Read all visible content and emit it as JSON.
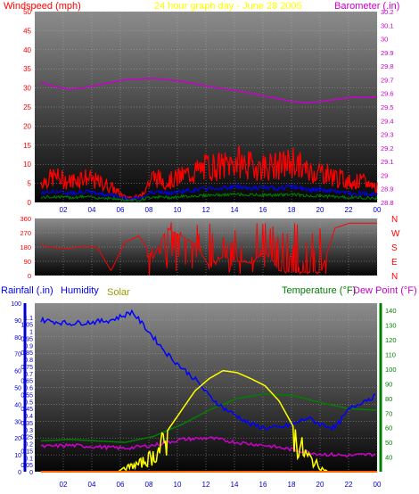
{
  "page": {
    "title": "24 hour graph day - June 28 2005",
    "windspeed_label": "Windspeed (mph)",
    "barometer_label": "Barometer (.in)",
    "rainfall_label": "Rainfall (.in)",
    "humidity_label": "Humidity",
    "solar_label": "Solar",
    "temperature_label": "Temperature (°F)",
    "dewpoint_label": "Dew Point (°F)"
  },
  "colors": {
    "wind": "#ff0000",
    "wind_avg": "#0000ff",
    "wind_low": "#008000",
    "barometer": "#cc00cc",
    "direction": "#ff0000",
    "humidity": "#0000ff",
    "solar": "#ffff00",
    "temperature": "#008000",
    "dewpoint": "#cc00cc",
    "rainfall": "#ff6600",
    "title": "#ffff00"
  },
  "chart_data": [
    {
      "type": "line",
      "name": "wind-barometer",
      "title": "24 hour graph day - June 28 2005",
      "x_ticks": [
        "02",
        "04",
        "06",
        "08",
        "10",
        "12",
        "14",
        "16",
        "18",
        "20",
        "22",
        "00"
      ],
      "y_left": {
        "label": "Windspeed (mph)",
        "range": [
          0,
          50
        ],
        "ticks": [
          "0",
          "5",
          "10",
          "15",
          "20",
          "25",
          "30",
          "35",
          "40",
          "45",
          "50"
        ]
      },
      "y_right": {
        "label": "Barometer (.in)",
        "range": [
          28.8,
          30.2
        ],
        "ticks": [
          "28.8",
          "28.9",
          "29",
          "29.1",
          "29.2",
          "29.3",
          "29.4",
          "29.5",
          "29.6",
          "29.7",
          "29.8",
          "29.9",
          "30",
          "30.1",
          "30.2"
        ]
      },
      "series": [
        {
          "name": "Barometer (.in)",
          "x": [
            0,
            1,
            2,
            3,
            4,
            6,
            8,
            10,
            12,
            14,
            16,
            18,
            19,
            20,
            22,
            24
          ],
          "y": [
            29.68,
            29.65,
            29.63,
            29.64,
            29.66,
            29.7,
            29.71,
            29.69,
            29.65,
            29.62,
            29.58,
            29.54,
            29.53,
            29.54,
            29.57,
            29.57
          ]
        },
        {
          "name": "Windspeed (mph)",
          "x": [
            0,
            1,
            2,
            3,
            4,
            5,
            6,
            7,
            8,
            9,
            10,
            11,
            12,
            13,
            14,
            15,
            16,
            17,
            18,
            19,
            20,
            21,
            22,
            23,
            24
          ],
          "y": [
            4,
            5,
            4,
            5,
            4,
            3,
            1,
            1,
            5,
            4,
            5,
            6,
            7,
            7,
            8,
            7,
            7,
            7,
            8,
            6,
            6,
            5,
            4,
            4,
            3
          ]
        }
      ]
    },
    {
      "type": "line",
      "name": "wind-direction",
      "x_ticks": [
        "02",
        "04",
        "06",
        "08",
        "10",
        "12",
        "14",
        "16",
        "18",
        "20",
        "22",
        "00"
      ],
      "y_left": {
        "range": [
          0,
          360
        ],
        "ticks": [
          "0",
          "90",
          "180",
          "270",
          "360"
        ]
      },
      "y_right_ticks": [
        "N",
        "E",
        "S",
        "W",
        "N"
      ],
      "series": [
        {
          "name": "Wind direction",
          "x": [
            0,
            1,
            2,
            3,
            4,
            5,
            6,
            7,
            8,
            9,
            10,
            11,
            12,
            13,
            14,
            15,
            16,
            17,
            18,
            19,
            20,
            21,
            22,
            23,
            24
          ],
          "y": [
            190,
            175,
            170,
            185,
            180,
            30,
            210,
            250,
            110,
            300,
            250,
            200,
            60,
            120,
            90,
            80,
            150,
            30,
            20,
            20,
            20,
            300,
            330,
            330,
            330
          ]
        }
      ]
    },
    {
      "type": "line",
      "name": "rain-humidity-temperature",
      "x_ticks": [
        "02",
        "04",
        "06",
        "08",
        "10",
        "12",
        "14",
        "16",
        "18",
        "20",
        "22",
        "00"
      ],
      "y_left_rain": {
        "label": "Rainfall (.in)",
        "range": [
          0,
          1.2
        ],
        "ticks": [
          "0",
          "0.05",
          "0.1",
          "0.15",
          "0.2",
          "0.25",
          "0.3",
          "0.35",
          "0.4",
          "0.45",
          "0.5",
          "0.55",
          "0.6",
          "0.65",
          "0.7",
          "0.75",
          "0.8",
          "0.85",
          "0.9",
          "0.95",
          "1",
          "1.05",
          "1.1"
        ]
      },
      "y_left_humidity": {
        "label": "Humidity",
        "range": [
          0,
          100
        ],
        "ticks": [
          "0",
          "10",
          "20",
          "30",
          "40",
          "50",
          "60",
          "70",
          "80",
          "90",
          "100"
        ]
      },
      "y_right": {
        "label": "Temperature (°F)",
        "range": [
          30,
          145
        ],
        "ticks": [
          "40",
          "50",
          "60",
          "70",
          "80",
          "90",
          "100",
          "110",
          "120",
          "130",
          "140"
        ]
      },
      "series": [
        {
          "name": "Humidity",
          "x": [
            0,
            2,
            4,
            5,
            6,
            6.5,
            7,
            8,
            9,
            10,
            11,
            12,
            13,
            14,
            15,
            16,
            17,
            18,
            19,
            20,
            21,
            22,
            23,
            24
          ],
          "y": [
            90,
            88,
            89,
            90,
            93,
            95,
            90,
            80,
            70,
            62,
            55,
            45,
            38,
            33,
            28,
            26,
            26,
            28,
            32,
            28,
            26,
            37,
            42,
            45
          ]
        },
        {
          "name": "Temperature (°F)",
          "x": [
            0,
            2,
            4,
            6,
            8,
            10,
            12,
            14,
            16,
            18,
            20,
            22,
            24
          ],
          "y": [
            51,
            52,
            51,
            50,
            54,
            62,
            72,
            80,
            83,
            82,
            77,
            73,
            72
          ]
        },
        {
          "name": "Dew Point (°F)",
          "x": [
            0,
            2,
            4,
            6,
            8,
            10,
            12,
            14,
            16,
            18,
            20,
            22,
            24
          ],
          "y": [
            47,
            48,
            47,
            46,
            48,
            52,
            53,
            50,
            48,
            45,
            42,
            41,
            42
          ]
        },
        {
          "name": "Solar",
          "x": [
            0,
            5.5,
            6,
            7,
            8,
            9,
            10,
            11,
            12,
            13,
            14,
            15,
            16,
            17,
            18,
            19,
            20,
            20.5,
            24
          ],
          "y": [
            0,
            0,
            5,
            10,
            20,
            40,
            60,
            80,
            92,
            100,
            98,
            92,
            85,
            70,
            45,
            20,
            5,
            0,
            0
          ]
        },
        {
          "name": "Rainfall (.in)",
          "x": [
            0,
            24
          ],
          "y": [
            0,
            0
          ]
        }
      ]
    }
  ]
}
